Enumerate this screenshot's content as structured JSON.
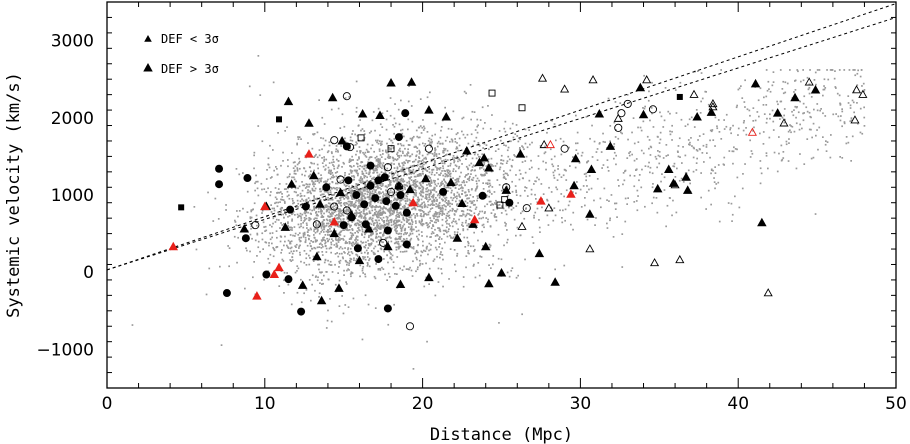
{
  "chart_data": {
    "type": "scatter",
    "xlabel": "Distance (Mpc)",
    "ylabel": "Systemic velocity (km/s)",
    "xlim": [
      0,
      50
    ],
    "ylim": [
      -1500,
      3500
    ],
    "x_ticks": [
      0,
      10,
      20,
      30,
      40,
      50
    ],
    "y_ticks": [
      -1000,
      0,
      1000,
      2000,
      3000
    ],
    "x_tick_labels": [
      "0",
      "10",
      "20",
      "30",
      "40",
      "50"
    ],
    "y_tick_labels": [
      "−1000",
      "0",
      "1000",
      "2000",
      "3000"
    ],
    "legend": {
      "placement": "top-left",
      "entries": [
        {
          "label": "DEF < 3σ",
          "marker": "small-filled-triangle"
        },
        {
          "label": "DEF > 3σ",
          "marker": "large-filled-triangle"
        }
      ]
    },
    "dashed_lines": [
      {
        "x": [
          0,
          50
        ],
        "y": [
          30,
          3480
        ]
      },
      {
        "x": [
          0,
          50
        ],
        "y": [
          30,
          3300
        ]
      }
    ],
    "background_cloud": {
      "marker": "gray-dot",
      "color": "#9a9a9a",
      "description_center": [
        17,
        900
      ]
    },
    "series": [
      {
        "marker": "filled-triangle",
        "color": "#000000",
        "points": [
          [
            11.5,
            2210
          ],
          [
            12.8,
            1930
          ],
          [
            14.3,
            2260
          ],
          [
            14.9,
            1700
          ],
          [
            16.2,
            2050
          ],
          [
            17.3,
            2030
          ],
          [
            18.0,
            2450
          ],
          [
            19.3,
            2460
          ],
          [
            20.4,
            2100
          ],
          [
            21.5,
            2010
          ],
          [
            22.8,
            1570
          ],
          [
            23.6,
            1420
          ],
          [
            23.9,
            1480
          ],
          [
            26.2,
            1530
          ],
          [
            29.7,
            1470
          ],
          [
            30.7,
            1330
          ],
          [
            31.2,
            2050
          ],
          [
            31.9,
            1630
          ],
          [
            33.8,
            2390
          ],
          [
            34.0,
            2040
          ],
          [
            35.6,
            1330
          ],
          [
            35.9,
            1150
          ],
          [
            36.7,
            1230
          ],
          [
            37.4,
            2010
          ],
          [
            38.3,
            2070
          ],
          [
            41.1,
            2440
          ],
          [
            42.5,
            2060
          ],
          [
            43.6,
            2260
          ],
          [
            44.9,
            2360
          ],
          [
            13.1,
            1250
          ],
          [
            13.5,
            880
          ],
          [
            14.8,
            1030
          ],
          [
            15.5,
            740
          ],
          [
            16.6,
            560
          ],
          [
            17.8,
            330
          ],
          [
            18.5,
            1120
          ],
          [
            19.2,
            1070
          ],
          [
            20.2,
            1210
          ],
          [
            21.8,
            1160
          ],
          [
            22.5,
            890
          ],
          [
            23.2,
            620
          ],
          [
            24.2,
            1350
          ],
          [
            25.3,
            1060
          ],
          [
            24.0,
            330
          ],
          [
            27.4,
            240
          ],
          [
            29.6,
            1120
          ],
          [
            30.6,
            750
          ],
          [
            34.9,
            1080
          ],
          [
            36.8,
            1060
          ],
          [
            41.5,
            640
          ],
          [
            8.7,
            560
          ],
          [
            11.3,
            580
          ],
          [
            13.3,
            200
          ],
          [
            14.4,
            500
          ],
          [
            16.0,
            150
          ],
          [
            12.4,
            -170
          ],
          [
            14.7,
            -210
          ],
          [
            13.6,
            -370
          ],
          [
            18.6,
            -160
          ],
          [
            20.4,
            -70
          ],
          [
            24.2,
            -150
          ],
          [
            22.2,
            440
          ],
          [
            25.0,
            -10
          ],
          [
            28.4,
            -130
          ],
          [
            10.1,
            850
          ],
          [
            11.7,
            1140
          ]
        ]
      },
      {
        "marker": "filled-circle",
        "color": "#000000",
        "points": [
          [
            7.1,
            1340
          ],
          [
            7.1,
            1140
          ],
          [
            8.9,
            1220
          ],
          [
            8.8,
            440
          ],
          [
            11.6,
            810
          ],
          [
            12.6,
            850
          ],
          [
            13.9,
            1100
          ],
          [
            15.3,
            1190
          ],
          [
            15.5,
            710
          ],
          [
            15.8,
            1000
          ],
          [
            16.3,
            880
          ],
          [
            16.7,
            1120
          ],
          [
            17.0,
            960
          ],
          [
            17.2,
            1190
          ],
          [
            17.7,
            920
          ],
          [
            18.3,
            860
          ],
          [
            18.6,
            1000
          ],
          [
            19.0,
            770
          ],
          [
            15.0,
            610
          ],
          [
            15.9,
            310
          ],
          [
            16.4,
            620
          ],
          [
            17.2,
            170
          ],
          [
            17.8,
            540
          ],
          [
            19.0,
            360
          ],
          [
            21.3,
            1040
          ],
          [
            23.8,
            990
          ],
          [
            25.5,
            900
          ],
          [
            10.1,
            -30
          ],
          [
            11.5,
            -90
          ],
          [
            7.6,
            -270
          ],
          [
            12.3,
            -510
          ],
          [
            17.8,
            -470
          ],
          [
            15.2,
            1630
          ],
          [
            16.7,
            1380
          ],
          [
            18.5,
            1750
          ],
          [
            18.9,
            2060
          ],
          [
            17.6,
            1230
          ]
        ]
      },
      {
        "marker": "open-triangle",
        "color": "#000000",
        "points": [
          [
            27.6,
            2510
          ],
          [
            29.0,
            2370
          ],
          [
            30.8,
            2490
          ],
          [
            34.2,
            2490
          ],
          [
            37.2,
            2300
          ],
          [
            38.4,
            2180
          ],
          [
            44.5,
            2460
          ],
          [
            47.5,
            2360
          ],
          [
            47.9,
            2300
          ],
          [
            42.9,
            1930
          ],
          [
            47.4,
            1970
          ],
          [
            28.0,
            830
          ],
          [
            26.3,
            590
          ],
          [
            27.7,
            1650
          ],
          [
            30.6,
            300
          ],
          [
            34.7,
            120
          ],
          [
            36.3,
            160
          ],
          [
            38.4,
            2140
          ],
          [
            41.9,
            -270
          ],
          [
            32.4,
            1990
          ],
          [
            36.0,
            1130
          ]
        ]
      },
      {
        "marker": "open-circle",
        "color": "#000000",
        "points": [
          [
            15.2,
            2280
          ],
          [
            14.4,
            1710
          ],
          [
            15.4,
            1620
          ],
          [
            17.8,
            1360
          ],
          [
            20.4,
            1600
          ],
          [
            25.3,
            1100
          ],
          [
            26.6,
            830
          ],
          [
            29.0,
            1600
          ],
          [
            32.4,
            1870
          ],
          [
            32.6,
            2060
          ],
          [
            33.0,
            2180
          ],
          [
            34.6,
            2110
          ],
          [
            14.8,
            1200
          ],
          [
            18.0,
            1040
          ],
          [
            18.5,
            1110
          ],
          [
            15.2,
            800
          ],
          [
            13.3,
            620
          ],
          [
            14.4,
            850
          ],
          [
            17.5,
            380
          ],
          [
            9.4,
            610
          ],
          [
            19.2,
            -700
          ]
        ]
      },
      {
        "marker": "open-square",
        "color": "#000000",
        "points": [
          [
            24.4,
            2320
          ],
          [
            26.3,
            2130
          ],
          [
            16.1,
            1740
          ],
          [
            18.0,
            1600
          ],
          [
            25.2,
            940
          ],
          [
            24.9,
            870
          ]
        ]
      },
      {
        "marker": "filled-square",
        "color": "#000000",
        "points": [
          [
            4.7,
            840
          ],
          [
            10.9,
            1980
          ],
          [
            36.3,
            2270
          ]
        ]
      },
      {
        "marker": "filled-triangle",
        "color": "#e8201a",
        "points": [
          [
            4.2,
            330
          ],
          [
            10.0,
            850
          ],
          [
            10.6,
            -30
          ],
          [
            10.9,
            60
          ],
          [
            9.5,
            -310
          ],
          [
            12.8,
            1530
          ],
          [
            14.4,
            650
          ],
          [
            19.4,
            900
          ],
          [
            23.3,
            680
          ],
          [
            27.5,
            920
          ],
          [
            29.4,
            1010
          ]
        ]
      },
      {
        "marker": "open-triangle",
        "color": "#e8201a",
        "points": [
          [
            28.1,
            1650
          ],
          [
            40.9,
            1810
          ]
        ]
      }
    ]
  }
}
